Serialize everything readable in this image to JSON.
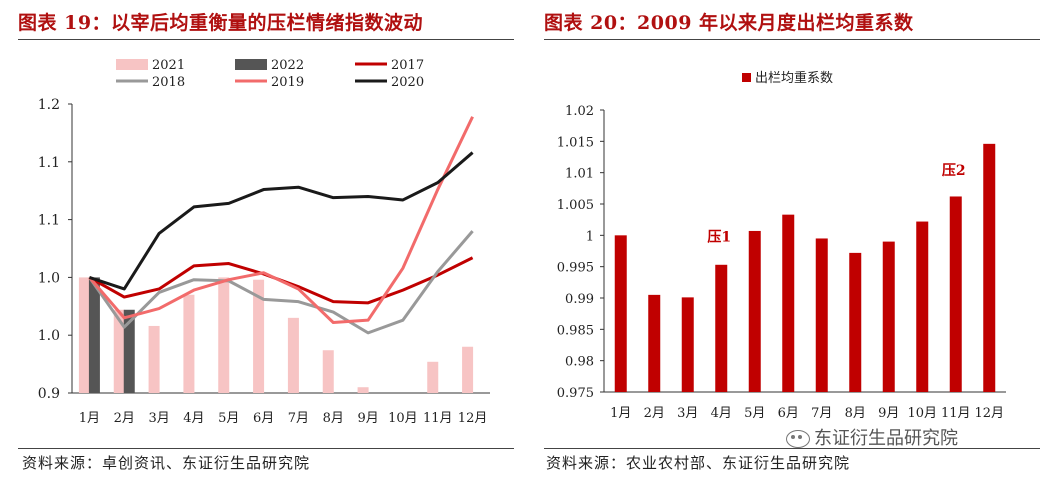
{
  "left": {
    "title": "图表 19：以宰后均重衡量的压栏情绪指数波动",
    "source": "资料来源：卓创资讯、东证衍生品研究院"
  },
  "right": {
    "title": "图表 20：2009 年以来月度出栏均重系数",
    "source": "资料来源：农业农村部、东证衍生品研究院"
  },
  "watermark": {
    "text": "东证衍生品研究院"
  },
  "colors": {
    "bar2021": "#f7c4c4",
    "bar2022": "#555555",
    "line2017": "#c00000",
    "line2018": "#999999",
    "line2019": "#f26b6b",
    "line2020": "#1a1a1a",
    "barRight": "#c00000",
    "annot": "#c00000"
  },
  "chart_data": [
    {
      "type": "bar",
      "categories": [
        "1月",
        "2月",
        "3月",
        "4月",
        "5月",
        "6月",
        "7月",
        "8月",
        "9月",
        "10月",
        "11月",
        "12月"
      ],
      "y_tick_labels": [
        "0.9",
        "1.0",
        "1.0",
        "1.1",
        "1.1",
        "1.2"
      ],
      "y_tick_values": [
        0.9,
        0.95,
        1.0,
        1.05,
        1.1,
        1.15
      ],
      "ylim": [
        0.9,
        1.15
      ],
      "grid": false,
      "legend_position": "top",
      "series": [
        {
          "name": "2021",
          "kind": "bar",
          "values": [
            1.0,
            0.972,
            0.958,
            0.985,
            1.0,
            0.998,
            0.965,
            0.937,
            0.905,
            0.893,
            0.927,
            0.94
          ]
        },
        {
          "name": "2022",
          "kind": "bar",
          "values": [
            1.0,
            0.972,
            null,
            null,
            null,
            null,
            null,
            null,
            null,
            null,
            null,
            null
          ]
        },
        {
          "name": "2017",
          "kind": "line",
          "values": [
            1.0,
            0.983,
            0.99,
            1.01,
            1.012,
            1.003,
            0.992,
            0.979,
            0.978,
            0.989,
            1.002,
            1.017
          ]
        },
        {
          "name": "2018",
          "kind": "line",
          "values": [
            1.0,
            0.957,
            0.987,
            0.998,
            0.997,
            0.981,
            0.979,
            0.97,
            0.952,
            0.963,
            1.005,
            1.04
          ]
        },
        {
          "name": "2019",
          "kind": "line",
          "values": [
            1.0,
            0.965,
            0.973,
            0.989,
            0.998,
            1.004,
            0.99,
            0.961,
            0.963,
            1.008,
            1.076,
            1.139
          ]
        },
        {
          "name": "2020",
          "kind": "line",
          "values": [
            1.0,
            0.99,
            1.038,
            1.061,
            1.064,
            1.076,
            1.078,
            1.069,
            1.07,
            1.067,
            1.082,
            1.108
          ]
        }
      ]
    },
    {
      "type": "bar",
      "categories": [
        "1月",
        "2月",
        "3月",
        "4月",
        "5月",
        "6月",
        "7月",
        "8月",
        "9月",
        "10月",
        "11月",
        "12月"
      ],
      "y_tick_labels": [
        "0.975",
        "0.98",
        "0.985",
        "0.99",
        "0.995",
        "1",
        "1.005",
        "1.01",
        "1.015",
        "1.02"
      ],
      "ylim": [
        0.975,
        1.02
      ],
      "grid": false,
      "legend_position": "top",
      "series": [
        {
          "name": "出栏均重系数",
          "values": [
            1.0,
            0.9905,
            0.9901,
            0.9953,
            1.0007,
            1.0033,
            0.9995,
            0.9972,
            0.999,
            1.0022,
            1.0062,
            1.0146
          ]
        }
      ],
      "annotations": [
        {
          "text": "压1",
          "category": "4月",
          "y": 0.9998
        },
        {
          "text": "压2",
          "category": "11月",
          "y": 1.0104
        }
      ]
    }
  ]
}
